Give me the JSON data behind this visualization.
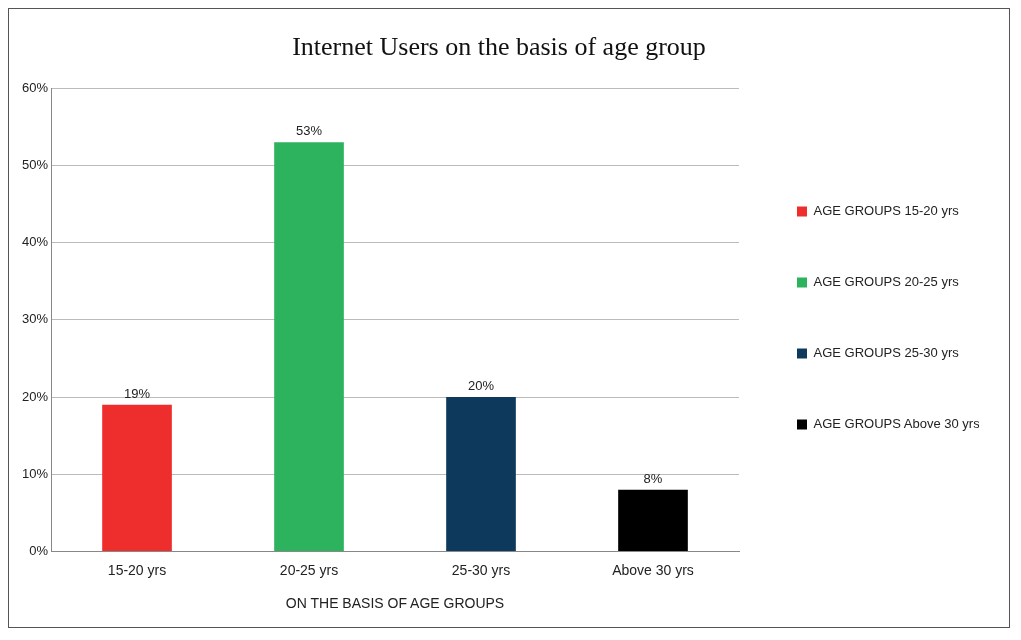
{
  "chart_data": {
    "type": "bar",
    "title": "Internet Users on the basis of age group",
    "xlabel": "ON THE BASIS OF AGE GROUPS",
    "categories": [
      "15-20 yrs",
      "20-25 yrs",
      "25-30 yrs",
      "Above 30 yrs"
    ],
    "series": [
      {
        "name": "AGE GROUPS 15-20 yrs",
        "color": "#ee2d2d",
        "values": [
          19,
          null,
          null,
          null
        ],
        "value_labels": [
          "19%",
          null,
          null,
          null
        ]
      },
      {
        "name": "AGE GROUPS 20-25 yrs",
        "color": "#2db35d",
        "values": [
          null,
          53,
          null,
          null
        ],
        "value_labels": [
          null,
          "53%",
          null,
          null
        ]
      },
      {
        "name": "AGE GROUPS 25-30 yrs",
        "color": "#0d3a5c",
        "values": [
          null,
          null,
          20,
          null
        ],
        "value_labels": [
          null,
          null,
          "20%",
          null
        ]
      },
      {
        "name": "AGE GROUPS Above 30 yrs",
        "color": "#000000",
        "values": [
          null,
          null,
          null,
          8
        ],
        "value_labels": [
          null,
          null,
          null,
          "8%"
        ]
      }
    ],
    "ylim": [
      0,
      60
    ],
    "yticks": [
      {
        "value": 0,
        "label": "0%"
      },
      {
        "value": 10,
        "label": "10%"
      },
      {
        "value": 20,
        "label": "20%"
      },
      {
        "value": 30,
        "label": "30%"
      },
      {
        "value": 40,
        "label": "40%"
      },
      {
        "value": 50,
        "label": "50%"
      },
      {
        "value": 60,
        "label": "60%"
      }
    ],
    "grid": "y",
    "legend": "right"
  }
}
